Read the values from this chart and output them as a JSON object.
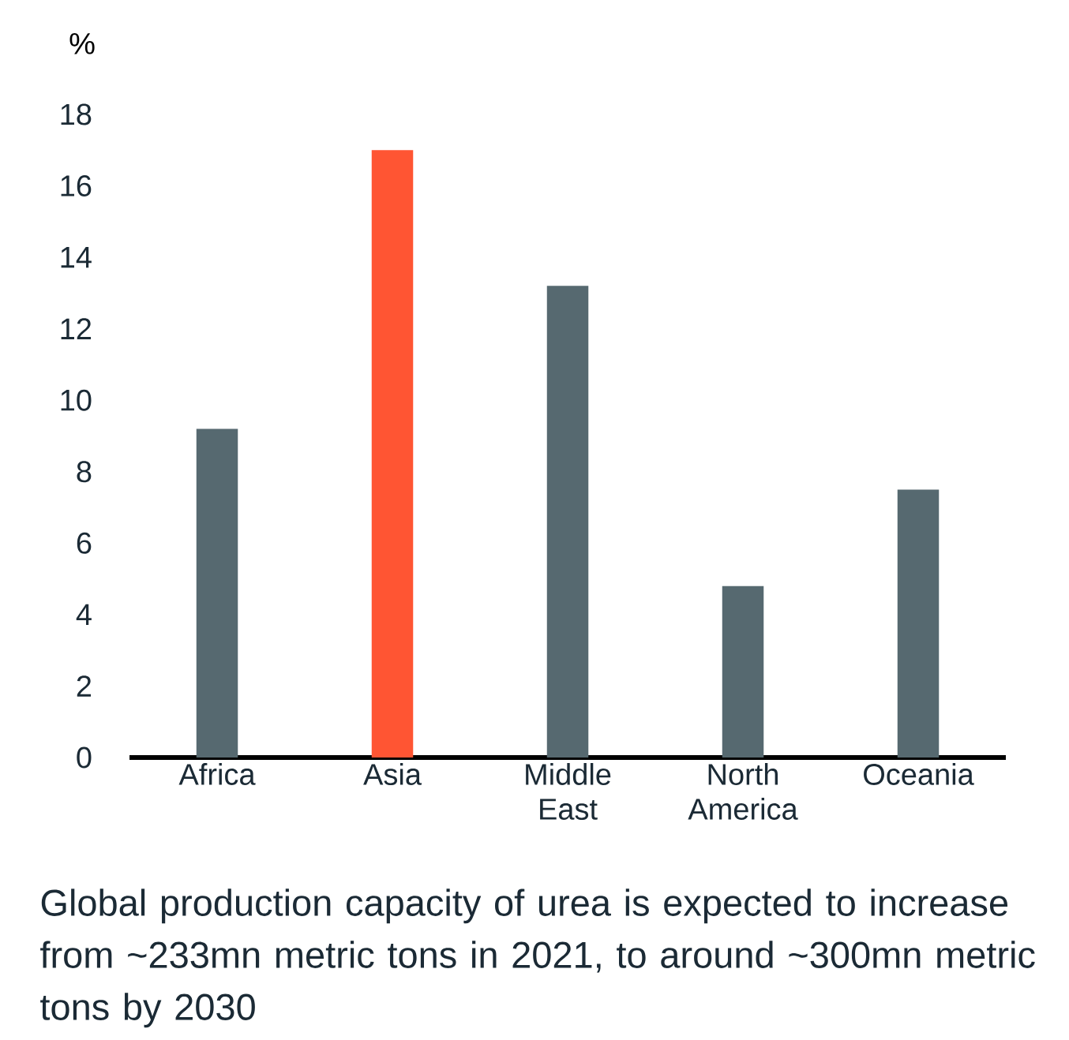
{
  "chart_data": {
    "type": "bar",
    "ylabel": "%",
    "categories": [
      "Africa",
      "Asia",
      "Middle East",
      "North America",
      "Oceania"
    ],
    "values": [
      9.2,
      17.0,
      13.2,
      4.8,
      7.5
    ],
    "colors": [
      "#566970",
      "#ff5533",
      "#566970",
      "#566970",
      "#566970"
    ],
    "ylim": [
      0,
      18
    ],
    "yticks": [
      0,
      2,
      4,
      6,
      8,
      10,
      12,
      14,
      16,
      18
    ],
    "annotations": [
      "Global production capacity of urea is expected to increase from ~233mn metric tons in 2021, to around ~300mn metric tons by 2030"
    ]
  }
}
